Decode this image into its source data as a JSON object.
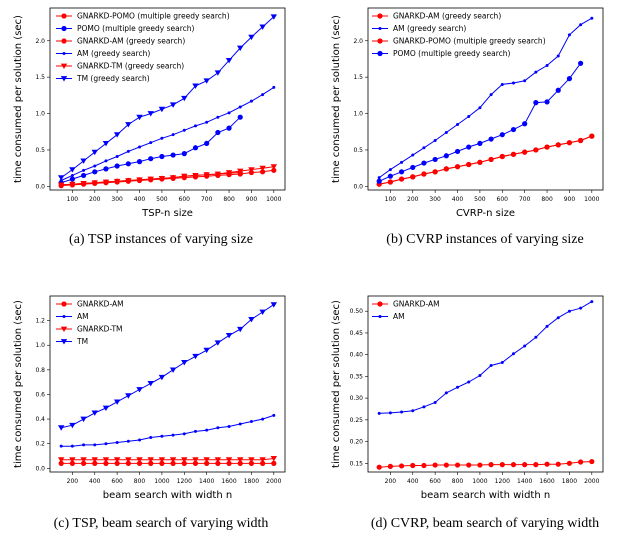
{
  "colors": {
    "red": "#ff0000",
    "blue": "#0000ff"
  },
  "captions": {
    "a": "(a) TSP instances of varying size",
    "b": "(b) CVRP instances of varying size",
    "c": "(c) TSP, beam search of varying width",
    "d": "(d) CVRP, beam search of varying width"
  },
  "chart_data": [
    {
      "type": "line",
      "xlabel": "TSP-n size",
      "ylabel": "time consumed per solution (sec)",
      "xlim": [
        0,
        1050
      ],
      "ylim": [
        -0.05,
        2.45
      ],
      "xticks": [
        100,
        200,
        300,
        400,
        500,
        600,
        700,
        800,
        900,
        1000
      ],
      "yticks": [
        0.0,
        0.5,
        1.0,
        1.5,
        2.0
      ],
      "ytick_labels": [
        "0.0",
        "0.5",
        "1.0",
        "1.5",
        "2.0"
      ],
      "legend": "upper-left",
      "series": [
        {
          "name": "GNARKD-POMO (multiple greedy search)",
          "color": "red",
          "marker": "circle",
          "x": [
            50,
            100,
            150,
            200,
            250,
            300,
            350,
            400,
            450,
            500,
            550,
            600,
            650,
            700,
            750,
            800,
            850
          ],
          "y": [
            0.02,
            0.03,
            0.04,
            0.05,
            0.06,
            0.07,
            0.08,
            0.09,
            0.1,
            0.11,
            0.12,
            0.14,
            0.15,
            0.16,
            0.17,
            0.18,
            0.19
          ]
        },
        {
          "name": "POMO (multiple greedy search)",
          "color": "blue",
          "marker": "circle",
          "x": [
            50,
            100,
            150,
            200,
            250,
            300,
            350,
            400,
            450,
            500,
            550,
            600,
            650,
            700,
            750,
            800,
            850
          ],
          "y": [
            0.05,
            0.1,
            0.15,
            0.2,
            0.24,
            0.28,
            0.31,
            0.34,
            0.38,
            0.41,
            0.43,
            0.45,
            0.53,
            0.59,
            0.74,
            0.8,
            0.95
          ]
        },
        {
          "name": "GNARKD-AM (greedy search)",
          "color": "red",
          "marker": "circle",
          "x": [
            50,
            100,
            150,
            200,
            250,
            300,
            350,
            400,
            450,
            500,
            550,
            600,
            650,
            700,
            750,
            800,
            850,
            900,
            950,
            1000
          ],
          "y": [
            0.01,
            0.02,
            0.03,
            0.04,
            0.05,
            0.06,
            0.07,
            0.08,
            0.09,
            0.1,
            0.11,
            0.12,
            0.13,
            0.14,
            0.15,
            0.16,
            0.17,
            0.19,
            0.2,
            0.22
          ]
        },
        {
          "name": "AM (greedy search)",
          "color": "blue",
          "marker": "dot",
          "x": [
            50,
            100,
            150,
            200,
            250,
            300,
            350,
            400,
            450,
            500,
            550,
            600,
            650,
            700,
            750,
            800,
            850,
            900,
            950,
            1000
          ],
          "y": [
            0.08,
            0.15,
            0.22,
            0.28,
            0.35,
            0.41,
            0.48,
            0.54,
            0.6,
            0.66,
            0.71,
            0.77,
            0.83,
            0.88,
            0.95,
            1.01,
            1.09,
            1.17,
            1.26,
            1.36
          ]
        },
        {
          "name": "GNARKD-TM (greedy search)",
          "color": "red",
          "marker": "triangle",
          "x": [
            50,
            100,
            150,
            200,
            250,
            300,
            350,
            400,
            450,
            500,
            550,
            600,
            650,
            700,
            750,
            800,
            850,
            900,
            950,
            1000
          ],
          "y": [
            0.02,
            0.03,
            0.04,
            0.05,
            0.06,
            0.07,
            0.08,
            0.09,
            0.1,
            0.11,
            0.12,
            0.14,
            0.15,
            0.16,
            0.17,
            0.19,
            0.21,
            0.23,
            0.25,
            0.27
          ]
        },
        {
          "name": "TM (greedy search)",
          "color": "blue",
          "marker": "triangle",
          "x": [
            50,
            100,
            150,
            200,
            250,
            300,
            350,
            400,
            450,
            500,
            550,
            600,
            650,
            700,
            750,
            800,
            850,
            900,
            950,
            1000
          ],
          "y": [
            0.12,
            0.23,
            0.35,
            0.47,
            0.59,
            0.71,
            0.85,
            0.95,
            1.0,
            1.06,
            1.12,
            1.21,
            1.38,
            1.45,
            1.56,
            1.73,
            1.9,
            2.05,
            2.19,
            2.33
          ]
        }
      ]
    },
    {
      "type": "line",
      "xlabel": "CVRP-n size",
      "ylabel": "time consumed per solution (sec)",
      "xlim": [
        0,
        1050
      ],
      "ylim": [
        -0.05,
        2.45
      ],
      "xticks": [
        100,
        200,
        300,
        400,
        500,
        600,
        700,
        800,
        900,
        1000
      ],
      "yticks": [
        0.0,
        0.5,
        1.0,
        1.5,
        2.0
      ],
      "ytick_labels": [
        "0.0",
        "0.5",
        "1.0",
        "1.5",
        "2.0"
      ],
      "legend": "upper-left",
      "series": [
        {
          "name": "GNARKD-AM (greedy search)",
          "color": "red",
          "marker": "circle",
          "x": [
            50,
            100,
            150,
            200,
            250,
            300,
            350,
            400,
            450,
            500,
            550,
            600,
            650,
            700,
            750,
            800,
            850,
            900,
            950,
            1000
          ],
          "y": [
            0.03,
            0.06,
            0.1,
            0.13,
            0.17,
            0.2,
            0.24,
            0.27,
            0.3,
            0.33,
            0.37,
            0.41,
            0.44,
            0.47,
            0.5,
            0.54,
            0.57,
            0.6,
            0.63,
            0.69
          ]
        },
        {
          "name": "AM (greedy search)",
          "color": "blue",
          "marker": "dot",
          "x": [
            50,
            100,
            150,
            200,
            250,
            300,
            350,
            400,
            450,
            500,
            550,
            600,
            650,
            700,
            750,
            800,
            850,
            900,
            950,
            1000
          ],
          "y": [
            0.12,
            0.23,
            0.33,
            0.43,
            0.53,
            0.63,
            0.74,
            0.85,
            0.96,
            1.08,
            1.26,
            1.4,
            1.42,
            1.45,
            1.57,
            1.66,
            1.79,
            2.08,
            2.22,
            2.31
          ]
        },
        {
          "name": "GNARKD-POMO (multiple greedy search)",
          "color": "red",
          "marker": "circle",
          "x": [
            50,
            100,
            150,
            200,
            250,
            300,
            350,
            400,
            450,
            500,
            550,
            600,
            650,
            700,
            750,
            800,
            850,
            900,
            950,
            1000
          ],
          "y": [
            0.03,
            0.06,
            0.1,
            0.13,
            0.17,
            0.2,
            0.24,
            0.27,
            0.3,
            0.33,
            0.37,
            0.41,
            0.44,
            0.47,
            0.5,
            0.54,
            0.57,
            0.6,
            0.63,
            0.69
          ]
        },
        {
          "name": "POMO (multiple greedy search)",
          "color": "blue",
          "marker": "circle",
          "x": [
            50,
            100,
            150,
            200,
            250,
            300,
            350,
            400,
            450,
            500,
            550,
            600,
            650,
            700,
            750,
            800,
            850,
            900,
            950
          ],
          "y": [
            0.07,
            0.14,
            0.2,
            0.26,
            0.32,
            0.37,
            0.42,
            0.48,
            0.54,
            0.59,
            0.65,
            0.71,
            0.78,
            0.86,
            1.15,
            1.16,
            1.32,
            1.48,
            1.69
          ]
        }
      ]
    },
    {
      "type": "line",
      "xlabel": "beam search with width n",
      "ylabel": "time consumed per solution (sec)",
      "xlim": [
        0,
        2100
      ],
      "ylim": [
        -0.03,
        1.4
      ],
      "xticks": [
        200,
        400,
        600,
        800,
        1000,
        1200,
        1400,
        1600,
        1800,
        2000
      ],
      "yticks": [
        0.0,
        0.2,
        0.4,
        0.6,
        0.8,
        1.0,
        1.2
      ],
      "ytick_labels": [
        "0.0",
        "0.2",
        "0.4",
        "0.6",
        "0.8",
        "1.0",
        "1.2"
      ],
      "legend": "upper-left",
      "series": [
        {
          "name": "GNARKD-AM",
          "color": "red",
          "marker": "circle",
          "x": [
            100,
            200,
            300,
            400,
            500,
            600,
            700,
            800,
            900,
            1000,
            1100,
            1200,
            1300,
            1400,
            1500,
            1600,
            1700,
            1800,
            1900,
            2000
          ],
          "y": [
            0.04,
            0.04,
            0.04,
            0.04,
            0.04,
            0.04,
            0.04,
            0.04,
            0.04,
            0.04,
            0.04,
            0.04,
            0.04,
            0.04,
            0.04,
            0.04,
            0.04,
            0.04,
            0.04,
            0.04
          ]
        },
        {
          "name": "AM",
          "color": "blue",
          "marker": "dot",
          "x": [
            100,
            200,
            300,
            400,
            500,
            600,
            700,
            800,
            900,
            1000,
            1100,
            1200,
            1300,
            1400,
            1500,
            1600,
            1700,
            1800,
            1900,
            2000
          ],
          "y": [
            0.18,
            0.18,
            0.19,
            0.19,
            0.2,
            0.21,
            0.22,
            0.23,
            0.25,
            0.26,
            0.27,
            0.28,
            0.3,
            0.31,
            0.33,
            0.34,
            0.36,
            0.38,
            0.4,
            0.43
          ]
        },
        {
          "name": "GNARKD-TM",
          "color": "red",
          "marker": "triangle",
          "x": [
            100,
            200,
            300,
            400,
            500,
            600,
            700,
            800,
            900,
            1000,
            1100,
            1200,
            1300,
            1400,
            1500,
            1600,
            1700,
            1800,
            1900,
            2000
          ],
          "y": [
            0.07,
            0.07,
            0.07,
            0.07,
            0.07,
            0.07,
            0.07,
            0.07,
            0.07,
            0.07,
            0.07,
            0.07,
            0.07,
            0.07,
            0.07,
            0.07,
            0.07,
            0.07,
            0.07,
            0.08
          ]
        },
        {
          "name": "TM",
          "color": "blue",
          "marker": "triangle",
          "x": [
            100,
            200,
            300,
            400,
            500,
            600,
            700,
            800,
            900,
            1000,
            1100,
            1200,
            1300,
            1400,
            1500,
            1600,
            1700,
            1800,
            1900,
            2000
          ],
          "y": [
            0.33,
            0.35,
            0.4,
            0.45,
            0.49,
            0.54,
            0.59,
            0.64,
            0.69,
            0.74,
            0.8,
            0.86,
            0.91,
            0.96,
            1.02,
            1.08,
            1.13,
            1.21,
            1.27,
            1.33
          ]
        }
      ]
    },
    {
      "type": "line",
      "xlabel": "beam search with width n",
      "ylabel": "time consumed per solution (sec)",
      "xlim": [
        0,
        2100
      ],
      "ylim": [
        0.13,
        0.535
      ],
      "xticks": [
        200,
        400,
        600,
        800,
        1000,
        1200,
        1400,
        1600,
        1800,
        2000
      ],
      "yticks": [
        0.15,
        0.2,
        0.25,
        0.3,
        0.35,
        0.4,
        0.45,
        0.5
      ],
      "ytick_labels": [
        "0.15",
        "0.20",
        "0.25",
        "0.30",
        "0.35",
        "0.40",
        "0.45",
        "0.50"
      ],
      "legend": "upper-left",
      "series": [
        {
          "name": "GNARKD-AM",
          "color": "red",
          "marker": "circle",
          "x": [
            100,
            200,
            300,
            400,
            500,
            600,
            700,
            800,
            900,
            1000,
            1100,
            1200,
            1300,
            1400,
            1500,
            1600,
            1700,
            1800,
            1900,
            2000
          ],
          "y": [
            0.141,
            0.143,
            0.144,
            0.145,
            0.145,
            0.146,
            0.146,
            0.146,
            0.146,
            0.146,
            0.147,
            0.147,
            0.147,
            0.147,
            0.147,
            0.148,
            0.148,
            0.15,
            0.153,
            0.154
          ]
        },
        {
          "name": "AM",
          "color": "blue",
          "marker": "dot",
          "x": [
            100,
            200,
            300,
            400,
            500,
            600,
            700,
            800,
            900,
            1000,
            1100,
            1200,
            1300,
            1400,
            1500,
            1600,
            1700,
            1800,
            1900,
            2000
          ],
          "y": [
            0.265,
            0.266,
            0.268,
            0.271,
            0.28,
            0.29,
            0.312,
            0.325,
            0.337,
            0.352,
            0.375,
            0.382,
            0.402,
            0.42,
            0.44,
            0.465,
            0.485,
            0.5,
            0.507,
            0.522
          ]
        }
      ]
    }
  ]
}
